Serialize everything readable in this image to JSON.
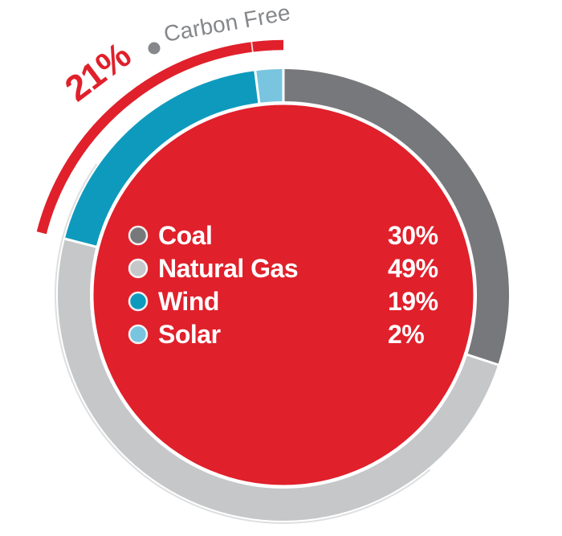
{
  "title_annotation": {
    "value": "21%",
    "label": "Carbon Free",
    "color": "#E0202B",
    "label_color": "#85878A",
    "dot_color": "#85878A"
  },
  "chart_data": {
    "type": "pie",
    "subtype": "donut",
    "title": "21% Carbon Free",
    "unit": "%",
    "categories": [
      "Coal",
      "Natural Gas",
      "Wind",
      "Solar"
    ],
    "values": [
      30,
      49,
      19,
      2
    ],
    "colors": [
      "#77787B",
      "#C5C7C9",
      "#0E9ABD",
      "#79C5DF"
    ],
    "center_fill": "#E0202B",
    "segment_separator_color": "#FFFFFF",
    "start_angle_deg": 0,
    "direction": "clockwise",
    "legend_position": "center",
    "annotation": {
      "text": "21% Carbon Free",
      "percent": 21,
      "covers": [
        "Wind",
        "Solar"
      ],
      "arc_color": "#E0202B",
      "separator_at_percent": 2
    }
  },
  "legend": {
    "items": [
      {
        "label": "Coal",
        "value": "30%",
        "color": "#77787B"
      },
      {
        "label": "Natural Gas",
        "value": "49%",
        "color": "#C5C7C9"
      },
      {
        "label": "Wind",
        "value": "19%",
        "color": "#0E9ABD"
      },
      {
        "label": "Solar",
        "value": "2%",
        "color": "#79C5DF"
      }
    ]
  }
}
